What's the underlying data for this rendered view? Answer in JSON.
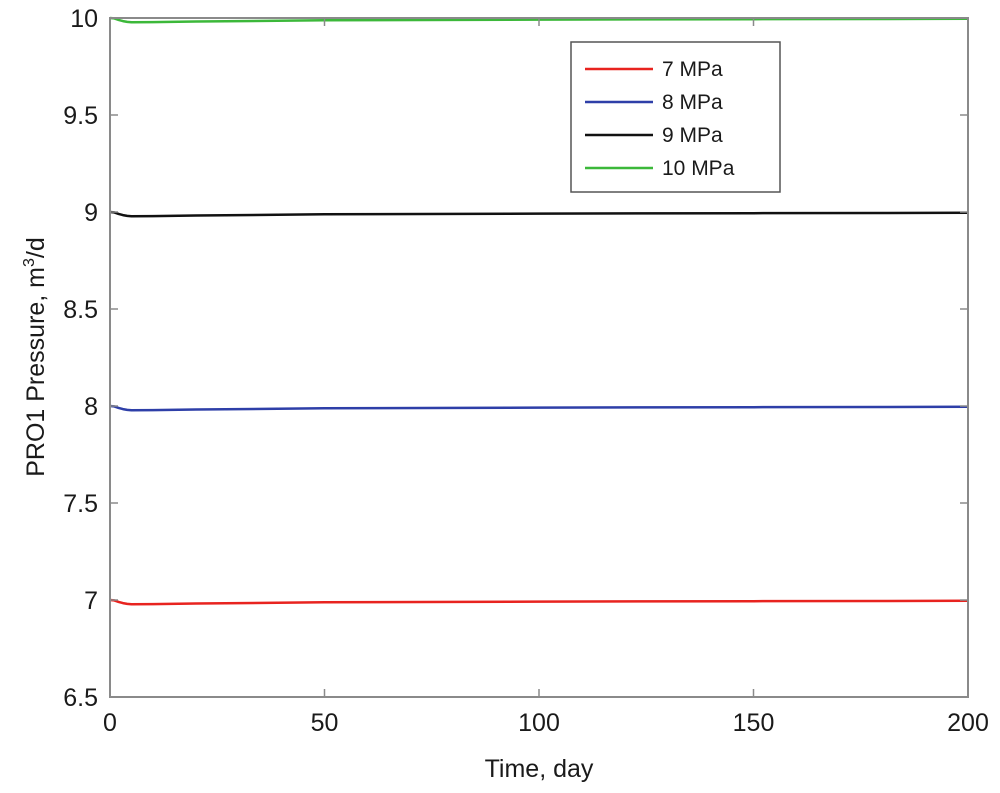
{
  "chart_data": {
    "type": "line",
    "title": "",
    "xlabel": "Time, day",
    "ylabel_main": "PRO1 Pressure, m",
    "ylabel_sup": "3",
    "ylabel_tail": "/d",
    "xlim": [
      0,
      200
    ],
    "ylim": [
      6.5,
      10
    ],
    "xticks": [
      0,
      50,
      100,
      150,
      200
    ],
    "xtick_labels": [
      "0",
      "50",
      "100",
      "150",
      "200"
    ],
    "yticks": [
      6.5,
      7,
      7.5,
      8,
      8.5,
      9,
      9.5,
      10
    ],
    "ytick_labels": [
      "6.5",
      "7",
      "7.5",
      "8",
      "8.5",
      "9",
      "9.5",
      "10"
    ],
    "legend_position": "top-right",
    "x": [
      0,
      1,
      2,
      3,
      4,
      5,
      10,
      20,
      50,
      100,
      150,
      200
    ],
    "series": [
      {
        "name": "7 MPa",
        "color": "#e8231f",
        "values": [
          7.0,
          6.998,
          6.99,
          6.984,
          6.98,
          6.978,
          6.979,
          6.982,
          6.988,
          6.992,
          6.994,
          6.996
        ]
      },
      {
        "name": "8 MPa",
        "color": "#2e3fa8",
        "values": [
          8.0,
          7.998,
          7.99,
          7.984,
          7.98,
          7.978,
          7.979,
          7.982,
          7.988,
          7.992,
          7.994,
          7.996
        ]
      },
      {
        "name": "9 MPa",
        "color": "#111111",
        "values": [
          9.0,
          8.998,
          8.99,
          8.984,
          8.98,
          8.978,
          8.979,
          8.982,
          8.988,
          8.992,
          8.994,
          8.996
        ]
      },
      {
        "name": "10 MPa",
        "color": "#3cb83a",
        "values": [
          10.0,
          9.998,
          9.99,
          9.984,
          9.98,
          9.978,
          9.979,
          9.982,
          9.988,
          9.992,
          9.994,
          9.996
        ]
      }
    ]
  }
}
